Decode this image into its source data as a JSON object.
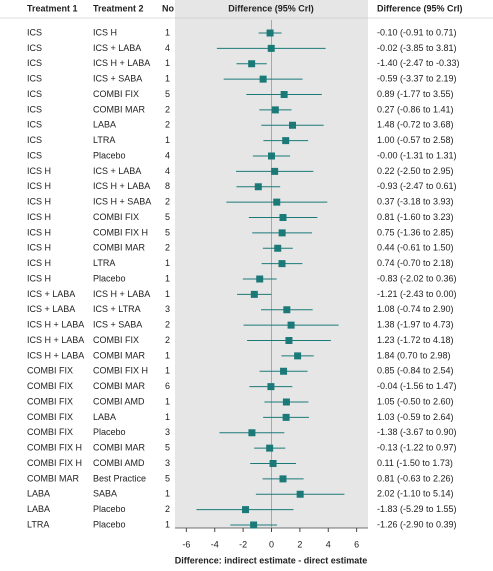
{
  "chart_data": {
    "type": "forest",
    "columns": [
      "Treatment 1",
      "Treatment 2",
      "No",
      "Difference (95% CrI)",
      "Difference (95% CrI)"
    ],
    "treatment1": [
      "ICS",
      "ICS",
      "ICS",
      "ICS",
      "ICS",
      "ICS",
      "ICS",
      "ICS",
      "ICS",
      "ICS H",
      "ICS H",
      "ICS H",
      "ICS H",
      "ICS H",
      "ICS H",
      "ICS H",
      "ICS H",
      "ICS + LABA",
      "ICS + LABA",
      "ICS H + LABA",
      "ICS H + LABA",
      "ICS H + LABA",
      "COMBI FIX",
      "COMBI FIX",
      "COMBI FIX",
      "COMBI FIX",
      "COMBI FIX",
      "COMBI FIX H",
      "COMBI FIX H",
      "COMBI MAR",
      "LABA",
      "LABA",
      "LTRA"
    ],
    "treatment2": [
      "ICS H",
      "ICS + LABA",
      "ICS H + LABA",
      "ICS + SABA",
      "COMBI FIX",
      "COMBI MAR",
      "LABA",
      "LTRA",
      "Placebo",
      "ICS + LABA",
      "ICS H + LABA",
      "ICS H + SABA",
      "COMBI FIX",
      "COMBI FIX H",
      "COMBI MAR",
      "LTRA",
      "Placebo",
      "ICS H + LABA",
      "ICS + LTRA",
      "ICS + SABA",
      "COMBI FIX",
      "COMBI MAR",
      "COMBI FIX H",
      "COMBI MAR",
      "COMBI AMD",
      "LABA",
      "Placebo",
      "COMBI MAR",
      "COMBI AMD",
      "Best Practice",
      "SABA",
      "Placebo",
      "Placebo"
    ],
    "n": [
      1,
      4,
      1,
      1,
      5,
      2,
      2,
      1,
      4,
      4,
      8,
      2,
      5,
      5,
      2,
      1,
      1,
      1,
      3,
      2,
      2,
      1,
      1,
      6,
      1,
      1,
      3,
      5,
      3,
      5,
      1,
      2,
      1
    ],
    "values": [
      -0.1,
      -0.02,
      -1.4,
      -0.59,
      0.89,
      0.27,
      1.48,
      1.0,
      0,
      0.22,
      -0.93,
      0.37,
      0.81,
      0.75,
      0.44,
      0.74,
      -0.83,
      -1.21,
      1.08,
      1.38,
      1.23,
      1.84,
      0.85,
      -0.04,
      1.05,
      1.03,
      -1.38,
      -0.13,
      0.11,
      0.81,
      2.02,
      -1.83,
      -1.26
    ],
    "lower": [
      -0.91,
      -3.85,
      -2.47,
      -3.37,
      -1.77,
      -0.86,
      -0.72,
      -0.57,
      -1.31,
      -2.5,
      -2.47,
      -3.18,
      -1.6,
      -1.36,
      -0.61,
      -0.7,
      -2.02,
      -2.43,
      -0.74,
      -1.97,
      -1.72,
      0.7,
      -0.84,
      -1.56,
      -0.5,
      -0.59,
      -3.67,
      -1.22,
      -1.5,
      -0.63,
      -1.1,
      -5.29,
      -2.9
    ],
    "upper": [
      0.71,
      3.81,
      -0.33,
      2.19,
      3.55,
      1.41,
      3.68,
      2.58,
      1.31,
      2.95,
      0.61,
      3.93,
      3.23,
      2.85,
      1.5,
      2.18,
      0.36,
      0.0,
      2.9,
      4.73,
      4.18,
      2.98,
      2.54,
      1.47,
      2.6,
      2.64,
      0.9,
      0.97,
      1.73,
      2.26,
      5.14,
      1.55,
      0.39
    ],
    "value_labels": [
      "-0.10 (-0.91 to 0.71)",
      "-0.02 (-3.85 to 3.81)",
      "-1.40 (-2.47 to -0.33)",
      "-0.59 (-3.37 to 2.19)",
      "0.89 (-1.77 to 3.55)",
      "0.27 (-0.86 to 1.41)",
      "1.48 (-0.72 to 3.68)",
      "1.00 (-0.57 to 2.58)",
      "-0.00 (-1.31 to 1.31)",
      "0.22 (-2.50 to 2.95)",
      "-0.93 (-2.47 to 0.61)",
      "0.37 (-3.18 to 3.93)",
      "0.81 (-1.60 to 3.23)",
      "0.75 (-1.36 to 2.85)",
      "0.44 (-0.61 to 1.50)",
      "0.74 (-0.70 to 2.18)",
      "-0.83 (-2.02 to 0.36)",
      "-1.21 (-2.43 to 0.00)",
      "1.08 (-0.74 to 2.90)",
      "1.38 (-1.97 to 4.73)",
      "1.23 (-1.72 to 4.18)",
      "1.84 (0.70 to 2.98)",
      "0.85 (-0.84 to 2.54)",
      "-0.04 (-1.56 to 1.47)",
      "1.05 (-0.50 to 2.60)",
      "1.03 (-0.59 to 2.64)",
      "-1.38 (-3.67 to 0.90)",
      "-0.13 (-1.22 to 0.97)",
      "0.11 (-1.50 to 1.73)",
      "0.81 (-0.63 to 2.26)",
      "2.02 (-1.10 to 5.14)",
      "-1.83 (-5.29 to 1.55)",
      "-1.26 (-2.90 to 0.39)"
    ],
    "xlim": [
      -6.8,
      6.8
    ],
    "xticks": [
      -6,
      -4,
      -2,
      0,
      2,
      4,
      6
    ],
    "xlabel": "Difference: indirect estimate - direct estimate",
    "color": "#1b7a78"
  }
}
